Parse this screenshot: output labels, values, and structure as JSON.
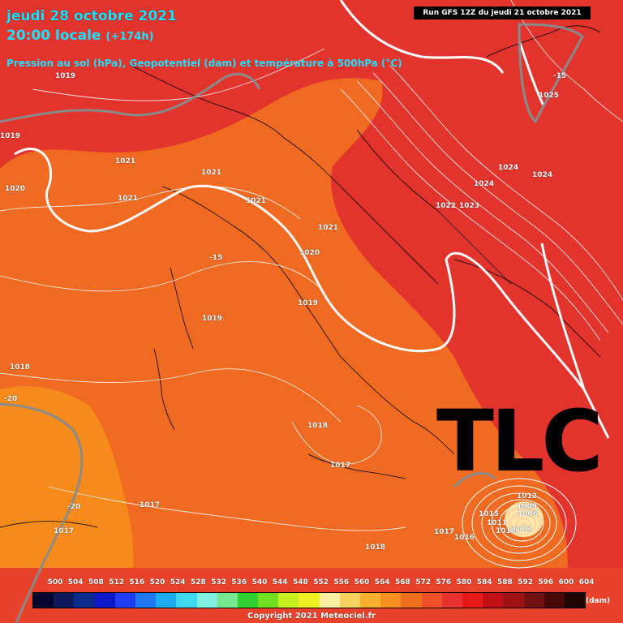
{
  "header": {
    "date": "jeudi 28 octobre 2021",
    "time": "20:00 locale",
    "lead": "(+174h)",
    "parameters": "Pression au sol (hPa), Geopotentiel (dam) et température à 500hPa (°C)"
  },
  "run_label": "Run GFS 12Z du jeudi 21 octobre 2021",
  "overlay_text": "TLC",
  "pressure_labels": [
    "1019",
    "1019",
    "1021",
    "1021",
    "1021",
    "1021",
    "1020",
    "1021",
    "1020",
    "1019",
    "1019",
    "1018",
    "1024",
    "1024",
    "1024",
    "1022",
    "1023",
    "1025",
    "1018",
    "1017",
    "1017",
    "1017",
    "1017",
    "1016",
    "1018",
    "1015",
    "1011",
    "1010",
    "1009",
    "1006",
    "1003",
    "1012"
  ],
  "temperature_labels": [
    "-15",
    "-15",
    "-20",
    "-20"
  ],
  "scale": {
    "values": [
      "500",
      "504",
      "508",
      "512",
      "516",
      "520",
      "524",
      "528",
      "532",
      "536",
      "540",
      "544",
      "548",
      "552",
      "556",
      "560",
      "564",
      "568",
      "572",
      "576",
      "580",
      "584",
      "588",
      "592",
      "596",
      "600",
      "604"
    ],
    "unit": "(dam)",
    "colors": [
      "#05052e",
      "#0c1a5c",
      "#0a2a8e",
      "#0a18c8",
      "#1e3cf0",
      "#1e78f0",
      "#1eaaf0",
      "#40d8f0",
      "#80f0e0",
      "#78e890",
      "#30d030",
      "#70e020",
      "#c8f020",
      "#f0f020",
      "#f8f0a0",
      "#f8d060",
      "#f8b030",
      "#f89020",
      "#f07020",
      "#f05028",
      "#e8302e",
      "#e81818",
      "#c01010",
      "#a01010",
      "#701010",
      "#480808",
      "#200404"
    ]
  },
  "copyright": "Copyright 2021 Meteociel.fr"
}
